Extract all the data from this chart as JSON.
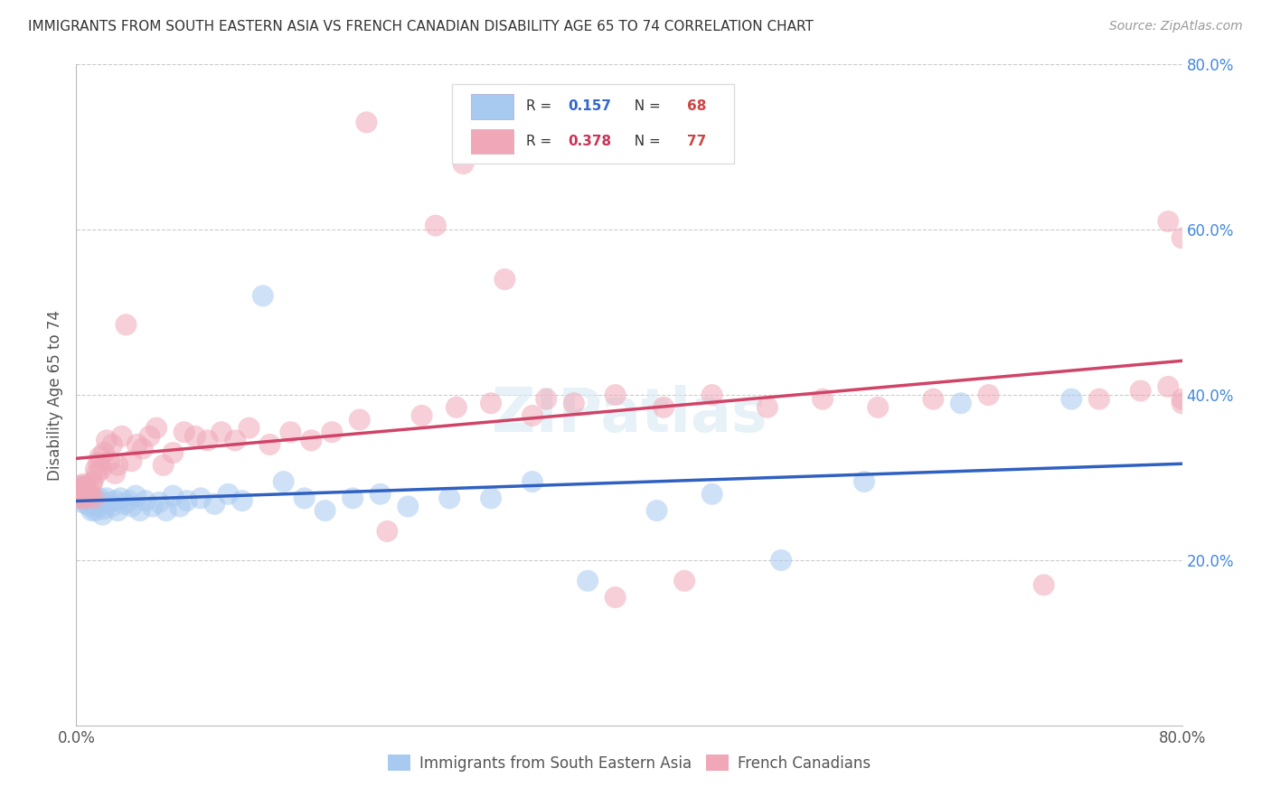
{
  "title": "IMMIGRANTS FROM SOUTH EASTERN ASIA VS FRENCH CANADIAN DISABILITY AGE 65 TO 74 CORRELATION CHART",
  "source": "Source: ZipAtlas.com",
  "ylabel": "Disability Age 65 to 74",
  "xlim": [
    0.0,
    0.8
  ],
  "ylim": [
    0.0,
    0.8
  ],
  "legend_label1": "Immigrants from South Eastern Asia",
  "legend_label2": "French Canadians",
  "R1": 0.157,
  "N1": 68,
  "R2": 0.378,
  "N2": 77,
  "color_blue": "#a8caf0",
  "color_pink": "#f0a8b8",
  "line_color_blue": "#3060c0",
  "line_color_pink": "#d04468",
  "blue_x": [
    0.001,
    0.002,
    0.002,
    0.003,
    0.003,
    0.004,
    0.004,
    0.005,
    0.005,
    0.006,
    0.006,
    0.007,
    0.007,
    0.008,
    0.008,
    0.009,
    0.009,
    0.01,
    0.01,
    0.011,
    0.012,
    0.013,
    0.014,
    0.015,
    0.016,
    0.017,
    0.018,
    0.019,
    0.02,
    0.022,
    0.024,
    0.026,
    0.028,
    0.03,
    0.032,
    0.035,
    0.038,
    0.04,
    0.043,
    0.046,
    0.05,
    0.055,
    0.06,
    0.065,
    0.07,
    0.075,
    0.08,
    0.09,
    0.1,
    0.11,
    0.12,
    0.135,
    0.15,
    0.165,
    0.18,
    0.2,
    0.22,
    0.24,
    0.27,
    0.3,
    0.33,
    0.37,
    0.42,
    0.46,
    0.51,
    0.57,
    0.64,
    0.72
  ],
  "blue_y": [
    0.285,
    0.28,
    0.275,
    0.278,
    0.29,
    0.282,
    0.27,
    0.288,
    0.275,
    0.28,
    0.272,
    0.285,
    0.278,
    0.275,
    0.268,
    0.28,
    0.272,
    0.265,
    0.278,
    0.26,
    0.275,
    0.268,
    0.26,
    0.265,
    0.272,
    0.275,
    0.268,
    0.255,
    0.262,
    0.275,
    0.27,
    0.265,
    0.272,
    0.26,
    0.275,
    0.268,
    0.272,
    0.265,
    0.278,
    0.26,
    0.272,
    0.265,
    0.27,
    0.26,
    0.278,
    0.265,
    0.272,
    0.275,
    0.268,
    0.28,
    0.272,
    0.52,
    0.295,
    0.275,
    0.26,
    0.275,
    0.28,
    0.265,
    0.275,
    0.275,
    0.295,
    0.175,
    0.26,
    0.28,
    0.2,
    0.295,
    0.39,
    0.395
  ],
  "pink_x": [
    0.001,
    0.002,
    0.002,
    0.003,
    0.004,
    0.004,
    0.005,
    0.005,
    0.006,
    0.007,
    0.007,
    0.008,
    0.009,
    0.01,
    0.011,
    0.012,
    0.013,
    0.014,
    0.015,
    0.016,
    0.017,
    0.018,
    0.02,
    0.022,
    0.024,
    0.026,
    0.028,
    0.03,
    0.033,
    0.036,
    0.04,
    0.044,
    0.048,
    0.053,
    0.058,
    0.063,
    0.07,
    0.078,
    0.086,
    0.095,
    0.105,
    0.115,
    0.125,
    0.14,
    0.155,
    0.17,
    0.185,
    0.205,
    0.225,
    0.25,
    0.275,
    0.3,
    0.33,
    0.36,
    0.39,
    0.425,
    0.46,
    0.5,
    0.54,
    0.58,
    0.62,
    0.66,
    0.7,
    0.74,
    0.77,
    0.79,
    0.79,
    0.8,
    0.8,
    0.8,
    0.21,
    0.26,
    0.28,
    0.31,
    0.34,
    0.39,
    0.44
  ],
  "pink_y": [
    0.28,
    0.275,
    0.285,
    0.288,
    0.278,
    0.28,
    0.292,
    0.275,
    0.285,
    0.275,
    0.29,
    0.28,
    0.285,
    0.278,
    0.292,
    0.295,
    0.275,
    0.31,
    0.305,
    0.318,
    0.325,
    0.31,
    0.33,
    0.345,
    0.32,
    0.34,
    0.305,
    0.315,
    0.35,
    0.485,
    0.32,
    0.34,
    0.335,
    0.35,
    0.36,
    0.315,
    0.33,
    0.355,
    0.35,
    0.345,
    0.355,
    0.345,
    0.36,
    0.34,
    0.355,
    0.345,
    0.355,
    0.37,
    0.235,
    0.375,
    0.385,
    0.39,
    0.375,
    0.39,
    0.4,
    0.385,
    0.4,
    0.385,
    0.395,
    0.385,
    0.395,
    0.4,
    0.17,
    0.395,
    0.405,
    0.41,
    0.61,
    0.59,
    0.395,
    0.39,
    0.73,
    0.605,
    0.68,
    0.54,
    0.395,
    0.155,
    0.175
  ]
}
